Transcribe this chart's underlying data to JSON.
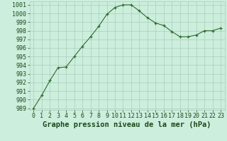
{
  "x": [
    0,
    1,
    2,
    3,
    4,
    5,
    6,
    7,
    8,
    9,
    10,
    11,
    12,
    13,
    14,
    15,
    16,
    17,
    18,
    19,
    20,
    21,
    22,
    23
  ],
  "y": [
    989.0,
    990.5,
    992.2,
    993.7,
    993.8,
    995.0,
    996.2,
    997.3,
    998.5,
    999.9,
    1000.7,
    1001.0,
    1001.0,
    1000.3,
    999.5,
    998.9,
    998.6,
    997.9,
    997.3,
    997.3,
    997.5,
    998.0,
    998.0,
    998.3
  ],
  "line_color": "#2d6b2d",
  "marker": "+",
  "marker_color": "#2d6b2d",
  "bg_color": "#cceedd",
  "grid_color": "#aaccbb",
  "xlabel": "Graphe pression niveau de la mer (hPa)",
  "xlabel_fontsize": 7.5,
  "xlabel_color": "#1a4a1a",
  "ylim_min": 988.8,
  "ylim_max": 1001.4,
  "yticks": [
    989,
    990,
    991,
    992,
    993,
    994,
    995,
    996,
    997,
    998,
    999,
    1000,
    1001
  ],
  "xticks": [
    0,
    1,
    2,
    3,
    4,
    5,
    6,
    7,
    8,
    9,
    10,
    11,
    12,
    13,
    14,
    15,
    16,
    17,
    18,
    19,
    20,
    21,
    22,
    23
  ],
  "tick_fontsize": 6.0,
  "tick_color": "#1a4a1a"
}
